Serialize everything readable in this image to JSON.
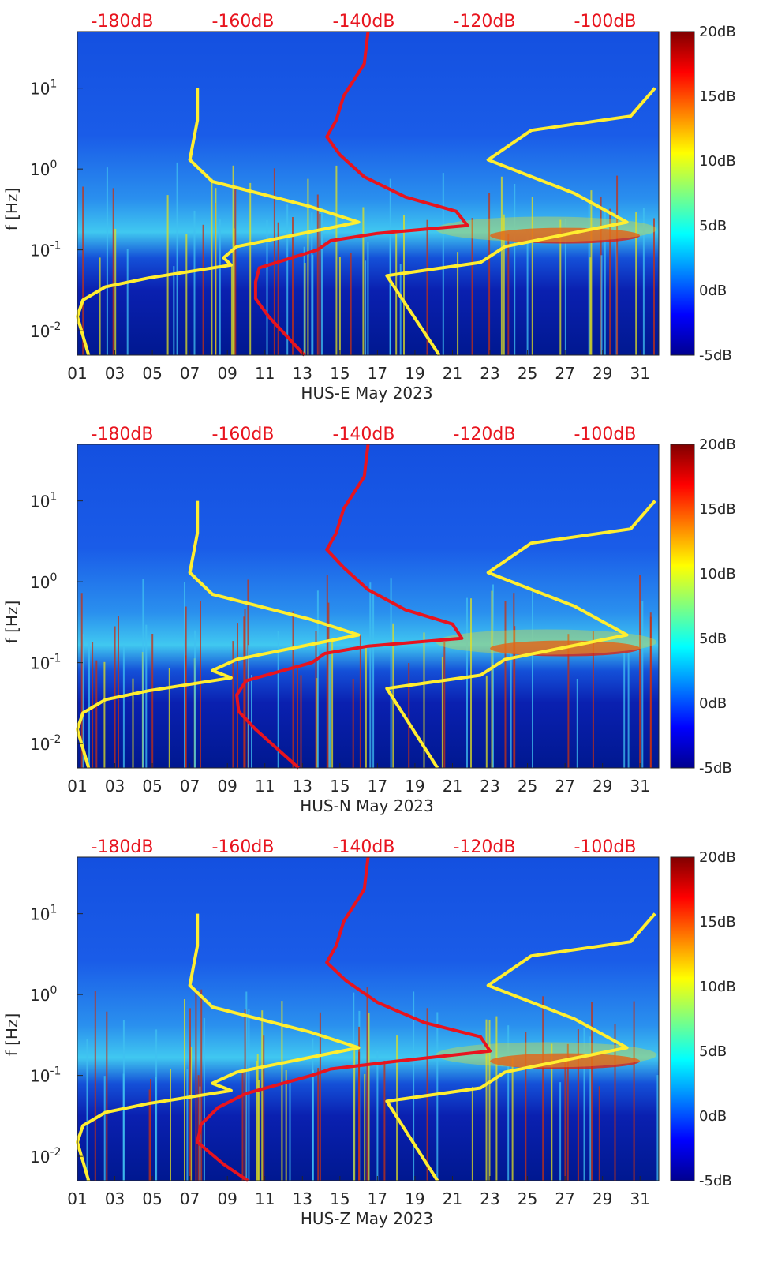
{
  "chart_data": [
    {
      "type": "heatmap",
      "title": "",
      "xlabel": "HUS-E May 2023",
      "ylabel": "f [Hz]",
      "x_range_day": [
        1,
        32
      ],
      "y_range_hz": [
        0.005,
        50
      ],
      "y_scale": "log",
      "x_ticks": [
        "01",
        "03",
        "05",
        "07",
        "09",
        "11",
        "13",
        "15",
        "17",
        "19",
        "21",
        "23",
        "25",
        "27",
        "29",
        "31"
      ],
      "y_ticks": [
        "10-2",
        "10-1",
        "100",
        "101"
      ],
      "top_axis_labels": [
        "-180dB",
        "-160dB",
        "-140dB",
        "-120dB",
        "-100dB"
      ],
      "colorbar": {
        "labels": [
          "20dB",
          "15dB",
          "10dB",
          "5dB",
          "0dB",
          "-5dB"
        ],
        "range_db": [
          -5,
          20
        ],
        "colormap": "jet"
      },
      "series": [
        {
          "color": "#ffee30",
          "points": [
            [
              7.4,
              10
            ],
            [
              7.4,
              4
            ],
            [
              7,
              1.3
            ],
            [
              8.2,
              0.7
            ],
            [
              13.3,
              0.35
            ],
            [
              16,
              0.22
            ],
            [
              9.5,
              0.11
            ],
            [
              8.8,
              0.08
            ],
            [
              9.2,
              0.065
            ],
            [
              4.8,
              0.045
            ],
            [
              2.5,
              0.035
            ],
            [
              1.3,
              0.024
            ],
            [
              1.0,
              0.015
            ],
            [
              1.6,
              0.005
            ]
          ]
        },
        {
          "color": "#ffee30",
          "points": [
            [
              31.8,
              10
            ],
            [
              30.5,
              4.5
            ],
            [
              25.2,
              3
            ],
            [
              22.9,
              1.3
            ],
            [
              27.5,
              0.5
            ],
            [
              30.3,
              0.22
            ],
            [
              23.8,
              0.11
            ],
            [
              22.5,
              0.07
            ],
            [
              17.5,
              0.048
            ],
            [
              20.3,
              0.005
            ]
          ]
        },
        {
          "color": "#e8141e",
          "points": [
            [
              16.5,
              50
            ],
            [
              16.3,
              20
            ],
            [
              15.2,
              8
            ],
            [
              14.8,
              4
            ],
            [
              14.3,
              2.5
            ],
            [
              15,
              1.5
            ],
            [
              16.3,
              0.8
            ],
            [
              18.5,
              0.45
            ],
            [
              21.2,
              0.3
            ],
            [
              21.8,
              0.2
            ],
            [
              17,
              0.16
            ],
            [
              14.5,
              0.13
            ],
            [
              13.8,
              0.1
            ],
            [
              10.7,
              0.06
            ],
            [
              10.5,
              0.04
            ],
            [
              10.5,
              0.025
            ],
            [
              11.2,
              0.015
            ],
            [
              13.1,
              0.005
            ]
          ]
        }
      ]
    },
    {
      "type": "heatmap",
      "title": "",
      "xlabel": "HUS-N May 2023",
      "ylabel": "f [Hz]",
      "x_range_day": [
        1,
        32
      ],
      "y_range_hz": [
        0.005,
        50
      ],
      "y_scale": "log",
      "x_ticks": [
        "01",
        "03",
        "05",
        "07",
        "09",
        "11",
        "13",
        "15",
        "17",
        "19",
        "21",
        "23",
        "25",
        "27",
        "29",
        "31"
      ],
      "y_ticks": [
        "10-2",
        "10-1",
        "100",
        "101"
      ],
      "top_axis_labels": [
        "-180dB",
        "-160dB",
        "-140dB",
        "-120dB",
        "-100dB"
      ],
      "colorbar": {
        "labels": [
          "20dB",
          "15dB",
          "10dB",
          "5dB",
          "0dB",
          "-5dB"
        ],
        "range_db": [
          -5,
          20
        ],
        "colormap": "jet"
      },
      "series": [
        {
          "color": "#ffee30",
          "points": [
            [
              7.4,
              10
            ],
            [
              7.4,
              4
            ],
            [
              7,
              1.3
            ],
            [
              8.2,
              0.7
            ],
            [
              13.3,
              0.35
            ],
            [
              16,
              0.22
            ],
            [
              9.5,
              0.11
            ],
            [
              8.2,
              0.08
            ],
            [
              9.2,
              0.065
            ],
            [
              4.8,
              0.045
            ],
            [
              2.5,
              0.035
            ],
            [
              1.3,
              0.024
            ],
            [
              1.0,
              0.015
            ],
            [
              1.6,
              0.005
            ]
          ]
        },
        {
          "color": "#ffee30",
          "points": [
            [
              31.8,
              10
            ],
            [
              30.5,
              4.5
            ],
            [
              25.2,
              3
            ],
            [
              22.9,
              1.3
            ],
            [
              27.5,
              0.5
            ],
            [
              30.3,
              0.22
            ],
            [
              23.8,
              0.11
            ],
            [
              22.5,
              0.07
            ],
            [
              17.5,
              0.048
            ],
            [
              20.2,
              0.005
            ]
          ]
        },
        {
          "color": "#e8141e",
          "points": [
            [
              16.5,
              50
            ],
            [
              16.3,
              20
            ],
            [
              15.2,
              8
            ],
            [
              14.8,
              4
            ],
            [
              14.3,
              2.5
            ],
            [
              15.2,
              1.5
            ],
            [
              16.5,
              0.8
            ],
            [
              18.5,
              0.45
            ],
            [
              21,
              0.3
            ],
            [
              21.5,
              0.2
            ],
            [
              16.5,
              0.16
            ],
            [
              14.2,
              0.13
            ],
            [
              13.5,
              0.1
            ],
            [
              10,
              0.06
            ],
            [
              9.5,
              0.04
            ],
            [
              9.6,
              0.025
            ],
            [
              10.5,
              0.015
            ],
            [
              12.8,
              0.005
            ]
          ]
        }
      ]
    },
    {
      "type": "heatmap",
      "title": "",
      "xlabel": "HUS-Z May 2023",
      "ylabel": "f [Hz]",
      "x_range_day": [
        1,
        32
      ],
      "y_range_hz": [
        0.005,
        50
      ],
      "y_scale": "log",
      "x_ticks": [
        "01",
        "03",
        "05",
        "07",
        "09",
        "11",
        "13",
        "15",
        "17",
        "19",
        "21",
        "23",
        "25",
        "27",
        "29",
        "31"
      ],
      "y_ticks": [
        "10-2",
        "10-1",
        "100",
        "101"
      ],
      "top_axis_labels": [
        "-180dB",
        "-160dB",
        "-140dB",
        "-120dB",
        "-100dB"
      ],
      "colorbar": {
        "labels": [
          "20dB",
          "15dB",
          "10dB",
          "5dB",
          "0dB",
          "-5dB"
        ],
        "range_db": [
          -5,
          20
        ],
        "colormap": "jet"
      },
      "series": [
        {
          "color": "#ffee30",
          "points": [
            [
              7.4,
              10
            ],
            [
              7.4,
              4
            ],
            [
              7,
              1.3
            ],
            [
              8.2,
              0.7
            ],
            [
              13.3,
              0.35
            ],
            [
              16,
              0.22
            ],
            [
              9.5,
              0.11
            ],
            [
              8.2,
              0.08
            ],
            [
              9.2,
              0.065
            ],
            [
              4.8,
              0.045
            ],
            [
              2.5,
              0.035
            ],
            [
              1.3,
              0.024
            ],
            [
              1.0,
              0.015
            ],
            [
              1.6,
              0.005
            ]
          ]
        },
        {
          "color": "#ffee30",
          "points": [
            [
              31.8,
              10
            ],
            [
              30.5,
              4.5
            ],
            [
              25.2,
              3
            ],
            [
              22.9,
              1.3
            ],
            [
              27.5,
              0.5
            ],
            [
              30.3,
              0.22
            ],
            [
              23.8,
              0.11
            ],
            [
              22.5,
              0.07
            ],
            [
              17.5,
              0.048
            ],
            [
              20.2,
              0.005
            ]
          ]
        },
        {
          "color": "#e8141e",
          "points": [
            [
              16.5,
              50
            ],
            [
              16.3,
              20
            ],
            [
              15.2,
              8
            ],
            [
              14.8,
              4
            ],
            [
              14.3,
              2.5
            ],
            [
              15.3,
              1.5
            ],
            [
              17,
              0.8
            ],
            [
              19.5,
              0.45
            ],
            [
              22.5,
              0.3
            ],
            [
              23,
              0.2
            ],
            [
              18,
              0.15
            ],
            [
              14.5,
              0.12
            ],
            [
              13.5,
              0.1
            ],
            [
              10,
              0.06
            ],
            [
              8.5,
              0.04
            ],
            [
              7.6,
              0.025
            ],
            [
              7.4,
              0.015
            ],
            [
              8.8,
              0.008
            ],
            [
              10.1,
              0.005
            ]
          ]
        }
      ]
    }
  ]
}
